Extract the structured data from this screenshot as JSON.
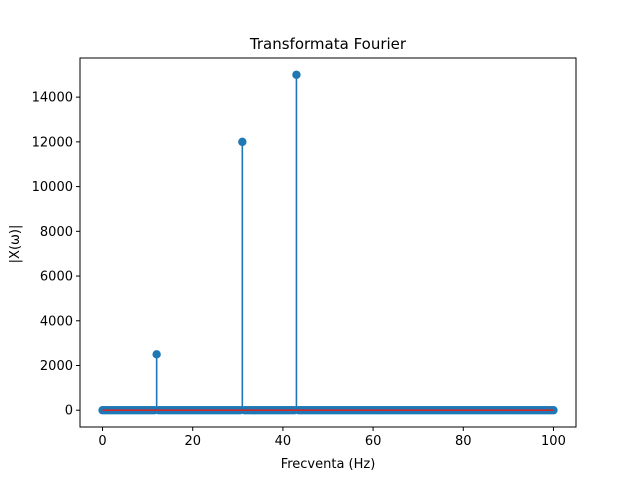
{
  "chart_data": {
    "type": "stem",
    "title": "Transformata Fourier",
    "xlabel": "Frecventa (Hz)",
    "ylabel": "|X(ω)|",
    "xlim": [
      -5,
      105
    ],
    "ylim": [
      -750,
      15750
    ],
    "xticks": [
      0,
      20,
      40,
      60,
      80,
      100
    ],
    "yticks": [
      0,
      2000,
      4000,
      6000,
      8000,
      10000,
      12000,
      14000
    ],
    "x_start": 0,
    "x_end": 100,
    "x_step": 0.5,
    "peaks": [
      {
        "x": 12,
        "y": 2500
      },
      {
        "x": 31,
        "y": 12000
      },
      {
        "x": 43,
        "y": 15000
      }
    ],
    "baseline_value": 0,
    "colors": {
      "stem": "#1f77b4",
      "marker": "#1f77b4",
      "baseline": "#d62728",
      "axes": "#000000"
    },
    "grid": false
  }
}
